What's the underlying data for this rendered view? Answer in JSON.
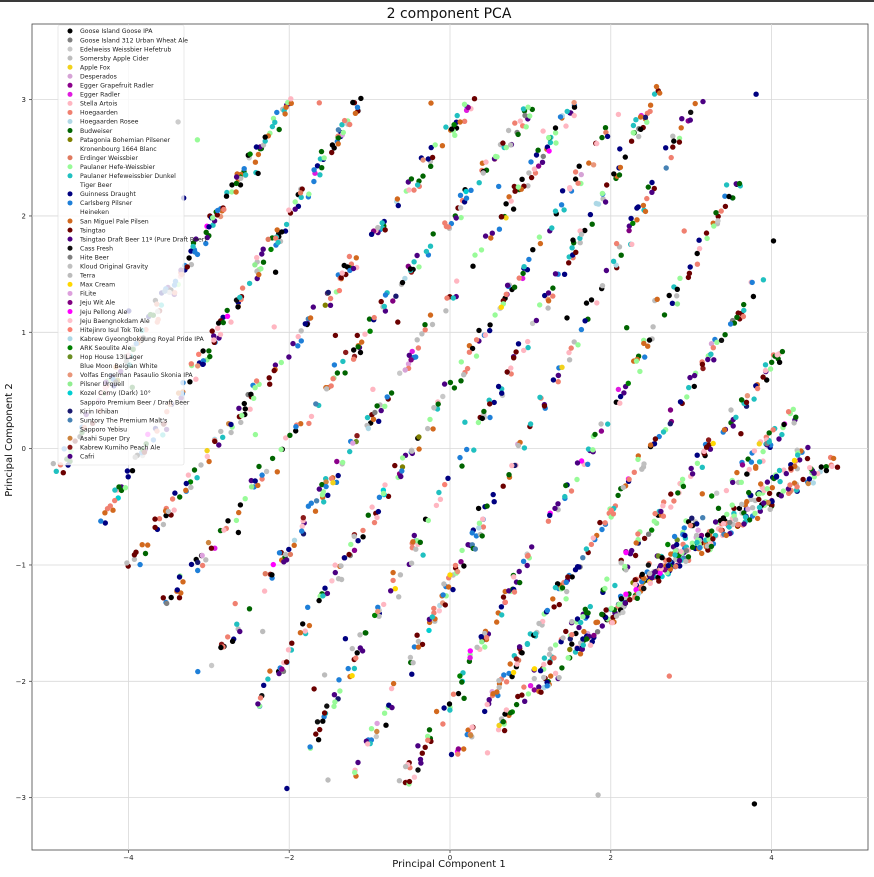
{
  "chart_data": {
    "type": "scatter",
    "title": "2 component PCA",
    "xlabel": "Principal Component 1",
    "ylabel": "Principal Component 2",
    "xlim": [
      -5.2,
      5.2
    ],
    "ylim": [
      -3.45,
      3.65
    ],
    "xticks": [
      -4,
      -2,
      0,
      2,
      4
    ],
    "yticks": [
      -3,
      -2,
      -1,
      0,
      1,
      2,
      3
    ],
    "grid": true,
    "legend_position": "upper-left",
    "series": [
      {
        "name": "Goose Island Goose IPA",
        "color": "#000000"
      },
      {
        "name": "Goose Island 312 Urban Wheat Ale",
        "color": "#7f7f7f"
      },
      {
        "name": "Edelweiss Weissbier Hefetrub",
        "color": "#c8c8c8"
      },
      {
        "name": "Somersby Apple Cider",
        "color": "#bdbdbd"
      },
      {
        "name": "Apple Fox",
        "color": "#f2d21b"
      },
      {
        "name": "Desperados",
        "color": "#d6a3d6"
      },
      {
        "name": "Egger Grapefruit Radler",
        "color": "#8b008b"
      },
      {
        "name": "Egger Radler",
        "color": "#e01be0"
      },
      {
        "name": "Stella Artois",
        "color": "#ffb6c1"
      },
      {
        "name": "Hoegaarden",
        "color": "#f08070"
      },
      {
        "name": "Hoegaarden Rosee",
        "color": "#b0d8e6"
      },
      {
        "name": "Budweiser",
        "color": "#006400"
      },
      {
        "name": "Patagonia Bohemian Pilsener",
        "color": "#808000"
      },
      {
        "name": "Kronenbourg 1664 Blanc",
        "color": "#ffffff"
      },
      {
        "name": "Erdinger Weissbier",
        "color": "#e07a5f"
      },
      {
        "name": "Paulaner Hefe-Weissbier",
        "color": "#98fb98"
      },
      {
        "name": "Paulaner Hefeweissbier Dunkel",
        "color": "#20c0c0"
      },
      {
        "name": "Tiger Beer",
        "color": "#ffffff"
      },
      {
        "name": "Guinness Draught",
        "color": "#000080"
      },
      {
        "name": "Carlsberg Pilsner",
        "color": "#1e7fd8"
      },
      {
        "name": "Heineken",
        "color": "#ffffff"
      },
      {
        "name": "San Miguel Pale Pilsen",
        "color": "#d2691e"
      },
      {
        "name": "Tsingtao",
        "color": "#6b0000"
      },
      {
        "name": "Tsingtao Draft Beer 11º (Pure Draft Beer)",
        "color": "#4b0082"
      },
      {
        "name": "Cass Fresh",
        "color": "#101010"
      },
      {
        "name": "Hite Beer",
        "color": "#808080"
      },
      {
        "name": "Kloud Original Gravity",
        "color": "#c0c0c0"
      },
      {
        "name": "Terra",
        "color": "#bcbcbc"
      },
      {
        "name": "Max Cream",
        "color": "#ffd700"
      },
      {
        "name": "FiLite",
        "color": "#dda0dd"
      },
      {
        "name": "Jeju Wit Ale",
        "color": "#800080"
      },
      {
        "name": "Jeju Pellong Ale",
        "color": "#ff00ff"
      },
      {
        "name": "Jeju Baengnokdam Ale",
        "color": "#ffc0cb"
      },
      {
        "name": "Hitejinro Isul Tok Tok",
        "color": "#fa8072"
      },
      {
        "name": "Kabrew Gyeongbokgung Royal Pride IPA",
        "color": "#add8e6"
      },
      {
        "name": "ARK Seoulite Ale",
        "color": "#008000"
      },
      {
        "name": "Hop House 13 Lager",
        "color": "#6b8e23"
      },
      {
        "name": "Blue Moon Belgian White",
        "color": "#ffffff"
      },
      {
        "name": "Volfas Engelman Pasaulio Skonia IPA",
        "color": "#e9967a"
      },
      {
        "name": "Pilsner Urquell",
        "color": "#90ee90"
      },
      {
        "name": "Kozel Cerny (Dark) 10°",
        "color": "#00ced1"
      },
      {
        "name": "Sapporo Premium Beer / Draft Beer",
        "color": "#ffffff"
      },
      {
        "name": "Kirin Ichiban",
        "color": "#191970"
      },
      {
        "name": "Suntory The Premium Malt's",
        "color": "#4682b4"
      },
      {
        "name": "Sapporo Yebisu",
        "color": "#ffffff"
      },
      {
        "name": "Asahi Super Dry",
        "color": "#cd853f"
      },
      {
        "name": "Kabrew Kumiho Peach Ale",
        "color": "#8b1a1a"
      },
      {
        "name": "Cafri",
        "color": "#4b0082"
      }
    ],
    "bands": [
      {
        "x0": -4.9,
        "y0": -0.2,
        "x1": -2.0,
        "y1": 3.0
      },
      {
        "x0": -4.3,
        "y0": -0.6,
        "x1": -1.1,
        "y1": 3.0
      },
      {
        "x0": -4.0,
        "y0": -1.0,
        "x1": 0.3,
        "y1": 3.0
      },
      {
        "x0": -3.6,
        "y0": -1.4,
        "x1": 1.1,
        "y1": 3.0
      },
      {
        "x0": -3.0,
        "y0": -1.9,
        "x1": 1.6,
        "y1": 3.0
      },
      {
        "x0": -2.4,
        "y0": -2.2,
        "x1": 2.1,
        "y1": 2.9
      },
      {
        "x0": -1.8,
        "y0": -2.6,
        "x1": 2.6,
        "y1": 3.1
      },
      {
        "x0": -1.2,
        "y0": -2.8,
        "x1": 3.1,
        "y1": 3.05
      },
      {
        "x0": -0.6,
        "y0": -2.9,
        "x1": 3.6,
        "y1": 2.3
      },
      {
        "x0": 0.0,
        "y0": -2.7,
        "x1": 3.9,
        "y1": 1.5
      },
      {
        "x0": 0.5,
        "y0": -2.5,
        "x1": 4.1,
        "y1": 0.8
      },
      {
        "x0": 1.1,
        "y0": -2.1,
        "x1": 4.3,
        "y1": 0.3
      },
      {
        "x0": 1.7,
        "y0": -1.6,
        "x1": 4.5,
        "y1": 0.0
      },
      {
        "x0": 2.3,
        "y0": -1.2,
        "x1": 4.8,
        "y1": -0.1
      }
    ],
    "dominant_colors": [
      "#000080",
      "#d2691e",
      "#98fb98",
      "#1e7fd8",
      "#006400",
      "#f08070",
      "#20c0c0",
      "#000000",
      "#ffb6c1",
      "#6b0000",
      "#4b0082",
      "#bcbcbc"
    ]
  }
}
